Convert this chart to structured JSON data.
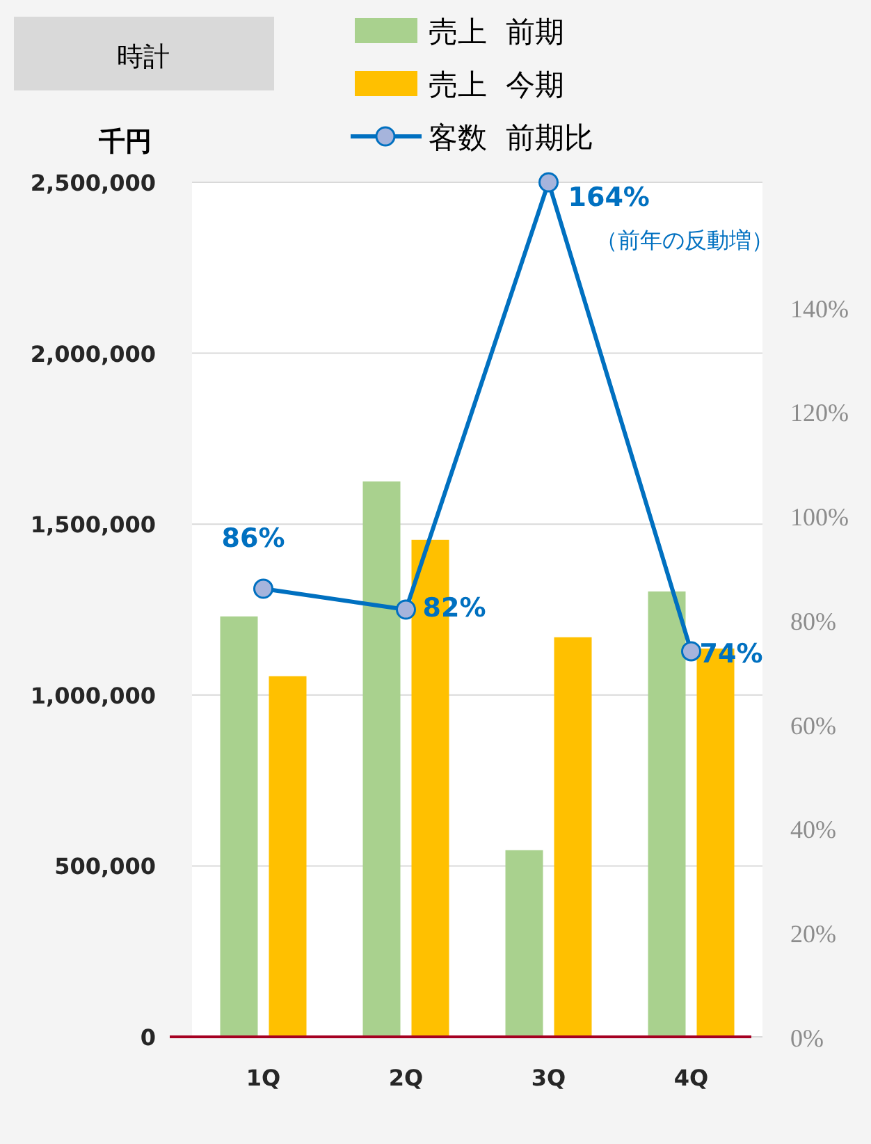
{
  "chart_data": {
    "type": "bar",
    "title": "時計",
    "ylabel": "千円",
    "categories": [
      "1Q",
      "2Q",
      "3Q",
      "4Q"
    ],
    "series": [
      {
        "name": "売上  前期",
        "color": "#a9d18e",
        "values": [
          1230000,
          1625000,
          546000,
          1303000
        ]
      },
      {
        "name": "売上  今期",
        "color": "#ffc000",
        "values": [
          1055000,
          1454000,
          1169000,
          1136000
        ]
      },
      {
        "name": "客数  前期比",
        "type": "line",
        "axis": "y2",
        "color": "#0070c0",
        "marker": "circle",
        "values": [
          86,
          82,
          164,
          74
        ],
        "value_labels": [
          "86%",
          "82%",
          "164%",
          "74%"
        ]
      }
    ],
    "ylim": [
      0,
      2500000
    ],
    "yticks": [
      {
        "value": 0,
        "label": "0"
      },
      {
        "value": 500000,
        "label": "500,000"
      },
      {
        "value": 1000000,
        "label": "1,000,000"
      },
      {
        "value": 1500000,
        "label": "1,500,000"
      },
      {
        "value": 2000000,
        "label": "2,000,000"
      },
      {
        "value": 2500000,
        "label": "2,500,000"
      }
    ],
    "y2lim": [
      0,
      164
    ],
    "y2ticks": [
      {
        "value": 0,
        "label": "0%"
      },
      {
        "value": 20,
        "label": "20%"
      },
      {
        "value": 40,
        "label": "40%"
      },
      {
        "value": 60,
        "label": "60%"
      },
      {
        "value": 80,
        "label": "80%"
      },
      {
        "value": 100,
        "label": "100%"
      },
      {
        "value": 120,
        "label": "120%"
      },
      {
        "value": 140,
        "label": "140%"
      }
    ],
    "annotations": [
      "（前年の反動増）"
    ],
    "legend": "top",
    "grid": "y"
  }
}
